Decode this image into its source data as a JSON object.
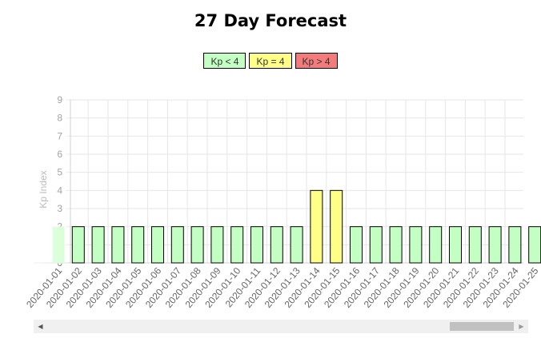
{
  "page": {
    "title": "27 Day Forecast"
  },
  "legend": [
    {
      "label": "Kp < 4",
      "color": "#c3ffc3"
    },
    {
      "label": "Kp = 4",
      "color": "#ffff88"
    },
    {
      "label": "Kp > 4",
      "color": "#f47b7b"
    }
  ],
  "chart_data": {
    "type": "bar",
    "title": "27 Day Forecast",
    "ylabel": "Kp Index",
    "xlabel": "",
    "ylim": [
      0,
      9
    ],
    "yticks": [
      0,
      1,
      2,
      3,
      4,
      5,
      6,
      7,
      8,
      9
    ],
    "grid": true,
    "legend_position": "top",
    "categories": [
      "2020-01-01",
      "2020-01-02",
      "2020-01-03",
      "2020-01-04",
      "2020-01-05",
      "2020-01-06",
      "2020-01-07",
      "2020-01-08",
      "2020-01-09",
      "2020-01-10",
      "2020-01-11",
      "2020-01-12",
      "2020-01-13",
      "2020-01-14",
      "2020-01-15",
      "2020-01-16",
      "2020-01-17",
      "2020-01-18",
      "2020-01-19",
      "2020-01-20",
      "2020-01-21",
      "2020-01-22",
      "2020-01-23",
      "2020-01-24",
      "2020-01-25"
    ],
    "values": [
      2,
      2,
      2,
      2,
      2,
      2,
      2,
      2,
      2,
      2,
      2,
      2,
      2,
      4,
      4,
      2,
      2,
      2,
      2,
      2,
      2,
      2,
      2,
      2,
      2
    ],
    "colors": {
      "low": "#c3ffc3",
      "mid": "#ffff88",
      "high": "#f47b7b",
      "border": "#000000",
      "grid": "#e6e6e6",
      "tick": "#666666"
    }
  },
  "scrollbar": {
    "left_arrow": "◀",
    "right_arrow": "▶"
  }
}
